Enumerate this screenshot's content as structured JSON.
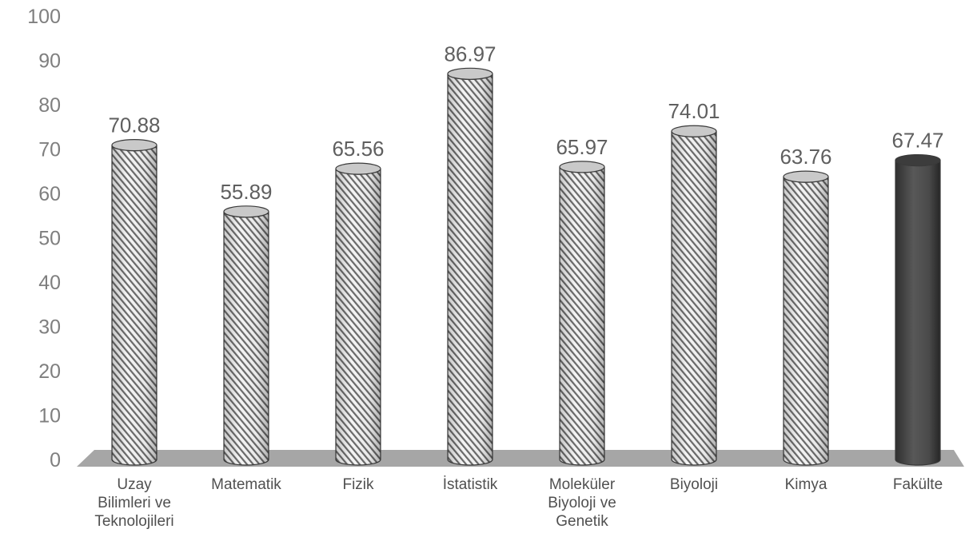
{
  "chart_data": {
    "type": "bar",
    "style": "3d-cylinder",
    "categories": [
      [
        "Uzay",
        "Bilimleri ve",
        "Teknolojileri"
      ],
      [
        "Matematik"
      ],
      [
        "Fizik"
      ],
      [
        "İstatistik"
      ],
      [
        "Moleküler",
        "Biyoloji ve",
        "Genetik"
      ],
      [
        "Biyoloji"
      ],
      [
        "Kimya"
      ],
      [
        "Fakülte"
      ]
    ],
    "values": [
      70.88,
      55.89,
      65.56,
      86.97,
      65.97,
      74.01,
      63.76,
      67.47
    ],
    "value_labels": [
      "70.88",
      "55.89",
      "65.56",
      "86.97",
      "65.97",
      "74.01",
      "63.76",
      "67.47"
    ],
    "highlight_index": 7,
    "title": "",
    "xlabel": "",
    "ylabel": "",
    "ylim": [
      0,
      100
    ],
    "yticks": [
      "0",
      "10",
      "20",
      "30",
      "40",
      "50",
      "60",
      "70",
      "80",
      "90",
      "100"
    ],
    "grid": false,
    "legend": "none",
    "colors": {
      "bar_fill": "#f4f4f4",
      "bar_stripe": "#6a6a6a",
      "bar_outline": "#3a3a3a",
      "highlight_fill": "#4a4a4a",
      "floor": "#a6a6a6",
      "tick_text": "#7f7f7f",
      "value_text": "#5f5f5f",
      "category_text": "#505050"
    }
  }
}
